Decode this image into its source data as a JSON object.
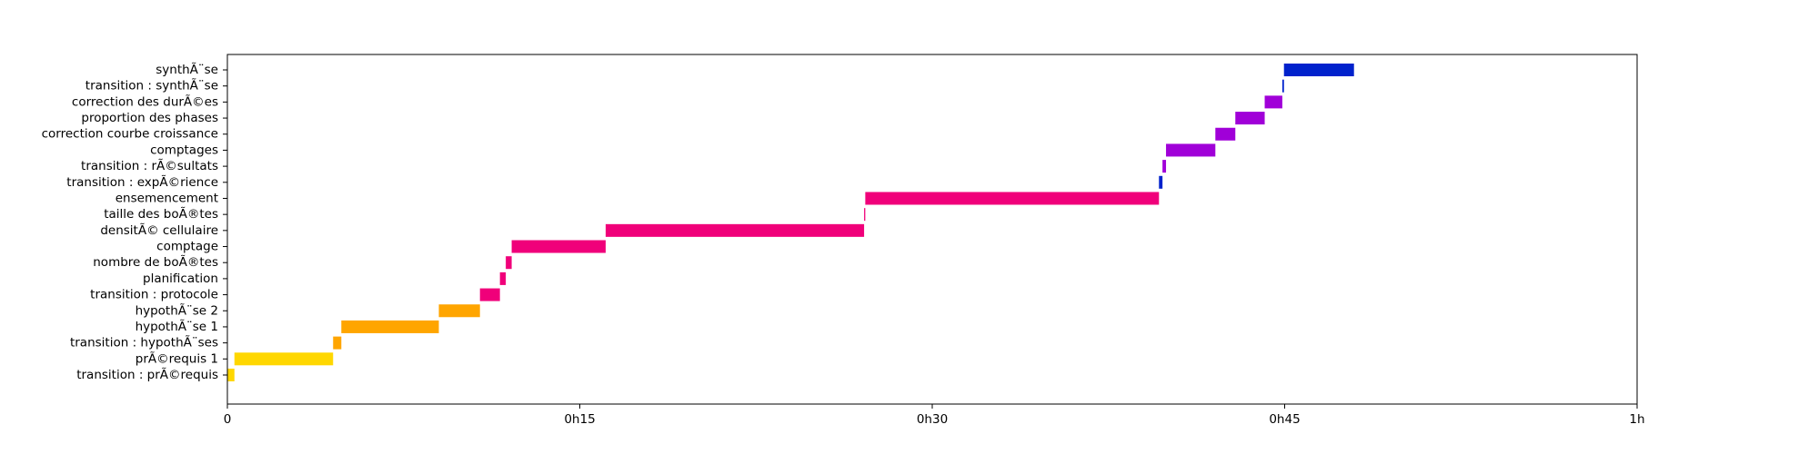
{
  "chart_data": {
    "type": "bar",
    "orientation": "horizontal",
    "grid": false,
    "xlim": [
      0,
      60
    ],
    "x_unit": "minutes",
    "x_ticks": [
      0,
      15,
      30,
      45,
      60
    ],
    "x_tick_labels": [
      "0",
      "0h15",
      "0h30",
      "0h45",
      "1h"
    ],
    "categories": [
      "transition : prÃ©requis",
      "prÃ©requis 1",
      "transition : hypothÃ¨ses",
      "hypothÃ¨se 1",
      "hypothÃ¨se 2",
      "transition : protocole",
      "planification",
      "nombre de boÃ®tes",
      "comptage",
      "densitÃ© cellulaire",
      "taille des boÃ®tes",
      "ensemencement",
      "transition : expÃ©rience",
      "transition : rÃ©sultats",
      "comptages",
      "correction courbe croissance",
      "proportion des phases",
      "correction des durÃ©es",
      "transition : synthÃ¨se",
      "synthÃ¨se"
    ],
    "bars": [
      {
        "start": 0.0,
        "end": 0.3,
        "color": "#ffd700"
      },
      {
        "start": 0.3,
        "end": 4.5,
        "color": "#ffd700"
      },
      {
        "start": 4.5,
        "end": 4.85,
        "color": "#ffa500"
      },
      {
        "start": 4.85,
        "end": 9.0,
        "color": "#ffa500"
      },
      {
        "start": 9.0,
        "end": 10.75,
        "color": "#ffa500"
      },
      {
        "start": 10.75,
        "end": 11.6,
        "color": "#f0007a"
      },
      {
        "start": 11.6,
        "end": 11.85,
        "color": "#f0007a"
      },
      {
        "start": 11.85,
        "end": 12.1,
        "color": "#f0007a"
      },
      {
        "start": 12.1,
        "end": 16.1,
        "color": "#f0007a"
      },
      {
        "start": 16.1,
        "end": 27.1,
        "color": "#f0007a"
      },
      {
        "start": 27.1,
        "end": 27.15,
        "color": "#f0007a"
      },
      {
        "start": 27.15,
        "end": 39.65,
        "color": "#f0007a"
      },
      {
        "start": 39.65,
        "end": 39.8,
        "color": "#0022cc"
      },
      {
        "start": 39.8,
        "end": 39.95,
        "color": "#a000d8"
      },
      {
        "start": 39.95,
        "end": 42.05,
        "color": "#a000d8"
      },
      {
        "start": 42.05,
        "end": 42.9,
        "color": "#a000d8"
      },
      {
        "start": 42.9,
        "end": 44.15,
        "color": "#a000d8"
      },
      {
        "start": 44.15,
        "end": 44.9,
        "color": "#a000d8"
      },
      {
        "start": 44.9,
        "end": 44.97,
        "color": "#0022cc"
      },
      {
        "start": 44.97,
        "end": 47.95,
        "color": "#0022cc"
      }
    ]
  }
}
